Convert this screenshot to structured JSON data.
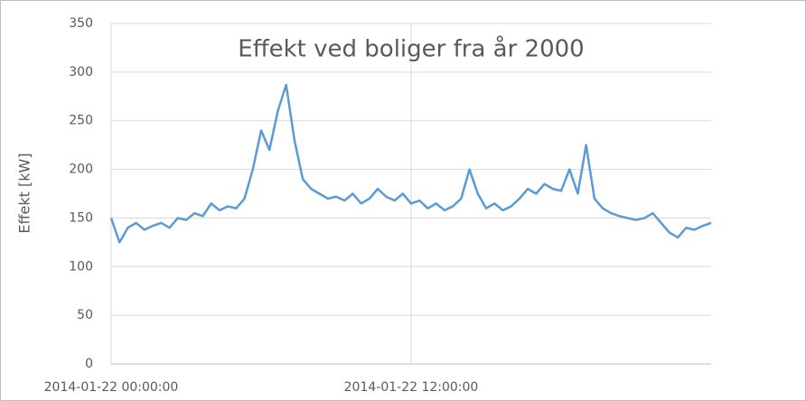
{
  "chart_data": {
    "type": "line",
    "title": "Effekt ved boliger fra år 2000",
    "y_label": "Effekt [kW]",
    "x": [
      "2014-01-22 00:00:00",
      "2014-01-22 00:20:00",
      "2014-01-22 00:40:00",
      "2014-01-22 01:00:00",
      "2014-01-22 01:20:00",
      "2014-01-22 01:40:00",
      "2014-01-22 02:00:00",
      "2014-01-22 02:20:00",
      "2014-01-22 02:40:00",
      "2014-01-22 03:00:00",
      "2014-01-22 03:20:00",
      "2014-01-22 03:40:00",
      "2014-01-22 04:00:00",
      "2014-01-22 04:20:00",
      "2014-01-22 04:40:00",
      "2014-01-22 05:00:00",
      "2014-01-22 05:20:00",
      "2014-01-22 05:40:00",
      "2014-01-22 06:00:00",
      "2014-01-22 06:20:00",
      "2014-01-22 06:40:00",
      "2014-01-22 07:00:00",
      "2014-01-22 07:20:00",
      "2014-01-22 07:40:00",
      "2014-01-22 08:00:00",
      "2014-01-22 08:20:00",
      "2014-01-22 08:40:00",
      "2014-01-22 09:00:00",
      "2014-01-22 09:20:00",
      "2014-01-22 09:40:00",
      "2014-01-22 10:00:00",
      "2014-01-22 10:20:00",
      "2014-01-22 10:40:00",
      "2014-01-22 11:00:00",
      "2014-01-22 11:20:00",
      "2014-01-22 11:40:00",
      "2014-01-22 12:00:00",
      "2014-01-22 12:20:00",
      "2014-01-22 12:40:00",
      "2014-01-22 13:00:00",
      "2014-01-22 13:20:00",
      "2014-01-22 13:40:00",
      "2014-01-22 14:00:00",
      "2014-01-22 14:20:00",
      "2014-01-22 14:40:00",
      "2014-01-22 15:00:00",
      "2014-01-22 15:20:00",
      "2014-01-22 15:40:00",
      "2014-01-22 16:00:00",
      "2014-01-22 16:20:00",
      "2014-01-22 16:40:00",
      "2014-01-22 17:00:00",
      "2014-01-22 17:20:00",
      "2014-01-22 17:40:00",
      "2014-01-22 18:00:00",
      "2014-01-22 18:20:00",
      "2014-01-22 18:40:00",
      "2014-01-22 19:00:00",
      "2014-01-22 19:20:00",
      "2014-01-22 19:40:00",
      "2014-01-22 20:00:00",
      "2014-01-22 20:20:00",
      "2014-01-22 20:40:00",
      "2014-01-22 21:00:00",
      "2014-01-22 21:20:00",
      "2014-01-22 21:40:00",
      "2014-01-22 22:00:00",
      "2014-01-22 22:20:00",
      "2014-01-22 22:40:00",
      "2014-01-22 23:00:00",
      "2014-01-22 23:20:00",
      "2014-01-22 23:40:00",
      "2014-01-23 00:00:00"
    ],
    "series": [
      {
        "name": "Effekt",
        "color": "#5b9bd5",
        "values": [
          150,
          125,
          140,
          145,
          138,
          142,
          145,
          140,
          150,
          148,
          155,
          152,
          165,
          158,
          162,
          160,
          170,
          200,
          240,
          220,
          260,
          287,
          230,
          190,
          180,
          175,
          170,
          172,
          168,
          175,
          165,
          170,
          180,
          172,
          168,
          175,
          165,
          168,
          160,
          165,
          158,
          162,
          170,
          200,
          175,
          160,
          165,
          158,
          162,
          170,
          180,
          175,
          185,
          180,
          178,
          200,
          175,
          225,
          170,
          160,
          155,
          152,
          150,
          148,
          150,
          155,
          145,
          135,
          130,
          140,
          138,
          142,
          145
        ]
      }
    ],
    "xlim": [
      "2014-01-22 00:00:00",
      "2014-01-23 00:00:00"
    ],
    "xticks": [
      "2014-01-22 00:00:00",
      "2014-01-22 12:00:00"
    ],
    "ylim": [
      0,
      350
    ],
    "yticks": [
      0,
      50,
      100,
      150,
      200,
      250,
      300,
      350
    ],
    "grid": true
  }
}
